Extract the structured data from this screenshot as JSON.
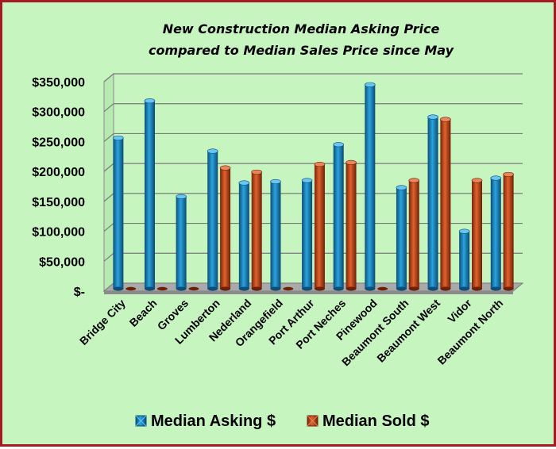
{
  "chart_data": {
    "type": "bar",
    "title_lines": [
      "New Construction  Median Asking Price",
      "compared to Median Sales Price since May"
    ],
    "categories": [
      "Bridge City",
      "Beach",
      "Groves",
      "Lumberton",
      "Nederland",
      "Orangefield",
      "Port Arthur",
      "Port Neches",
      "Pinewood",
      "Beaumont South",
      "Beaumont West",
      "Vidor",
      "Beaumont North"
    ],
    "series": [
      {
        "name": "Median Asking $",
        "color": "#1f8fc8",
        "values": [
          252000,
          314000,
          154000,
          230000,
          177000,
          179000,
          181000,
          241000,
          341000,
          169000,
          287000,
          96000,
          185000
        ]
      },
      {
        "name": "Median Sold $",
        "color": "#c8471a",
        "values": [
          0,
          0,
          0,
          202000,
          195000,
          0,
          208000,
          211000,
          0,
          181000,
          283000,
          181000,
          191000
        ]
      }
    ],
    "ylim": [
      0,
      350000
    ],
    "y_ticks": [
      0,
      50000,
      100000,
      150000,
      200000,
      250000,
      300000,
      350000
    ],
    "y_tick_labels": [
      "$-",
      "$50,000",
      "$100,000",
      "$150,000",
      "$200,000",
      "$250,000",
      "$300,000",
      "$350,000"
    ],
    "grid": true,
    "legend_position": "bottom"
  }
}
